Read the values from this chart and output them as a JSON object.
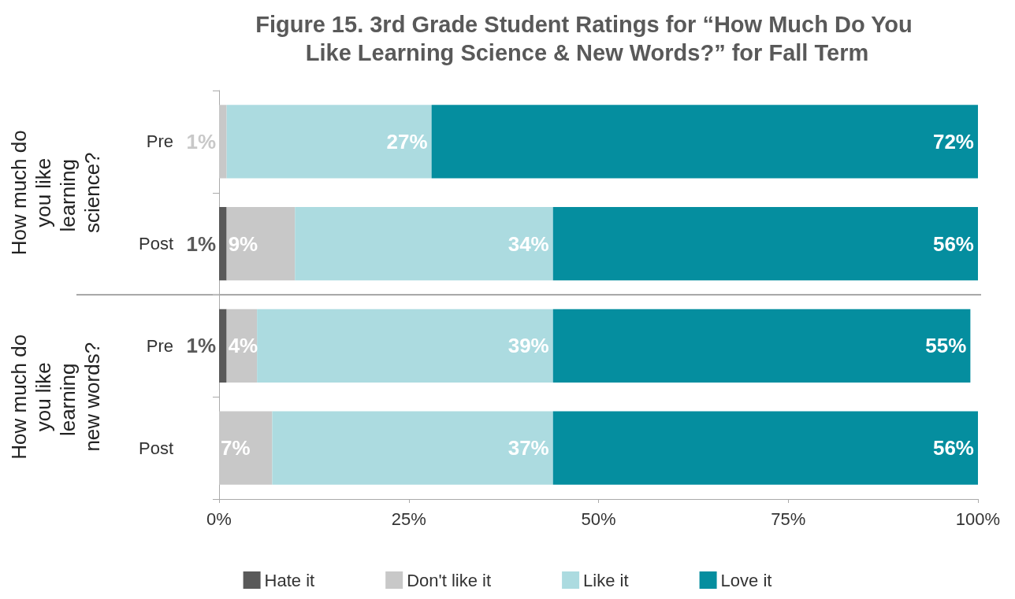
{
  "chart_data": {
    "type": "bar",
    "orientation": "horizontal",
    "stacked": true,
    "title": "Figure 15. 3rd Grade Student Ratings for “How Much Do You Like Learning Science & New Words?” for Fall Term",
    "categories": [
      "Pre",
      "Post",
      "Pre",
      "Post"
    ],
    "series": [
      {
        "name": "Hate it",
        "color": "#595959",
        "values": [
          0,
          1,
          1,
          0
        ],
        "value_labels": [
          null,
          "1%",
          "1%",
          null
        ]
      },
      {
        "name": "Don't like it",
        "color": "#c8c8c8",
        "values": [
          1,
          9,
          4,
          7
        ],
        "value_labels": [
          "1%",
          "9%",
          "4%",
          "7%"
        ]
      },
      {
        "name": "Like it",
        "color": "#acdbe0",
        "values": [
          27,
          34,
          39,
          37
        ],
        "value_labels": [
          "27%",
          "34%",
          "39%",
          "37%"
        ]
      },
      {
        "name": "Love it",
        "color": "#058e9f",
        "values": [
          72,
          56,
          55,
          56
        ],
        "value_labels": [
          "72%",
          "56%",
          "55%",
          "56%"
        ]
      }
    ],
    "xlim": [
      0,
      100
    ],
    "xticks": [
      {
        "value": 0,
        "label": "0%"
      },
      {
        "value": 25,
        "label": "25%"
      },
      {
        "value": 50,
        "label": "50%"
      },
      {
        "value": 75,
        "label": "75%"
      },
      {
        "value": 100,
        "label": "100%"
      }
    ],
    "annotations": [
      "How much do you like learning science?",
      "How much do you like learning new words?"
    ],
    "grid": false,
    "legend": "bottom"
  }
}
